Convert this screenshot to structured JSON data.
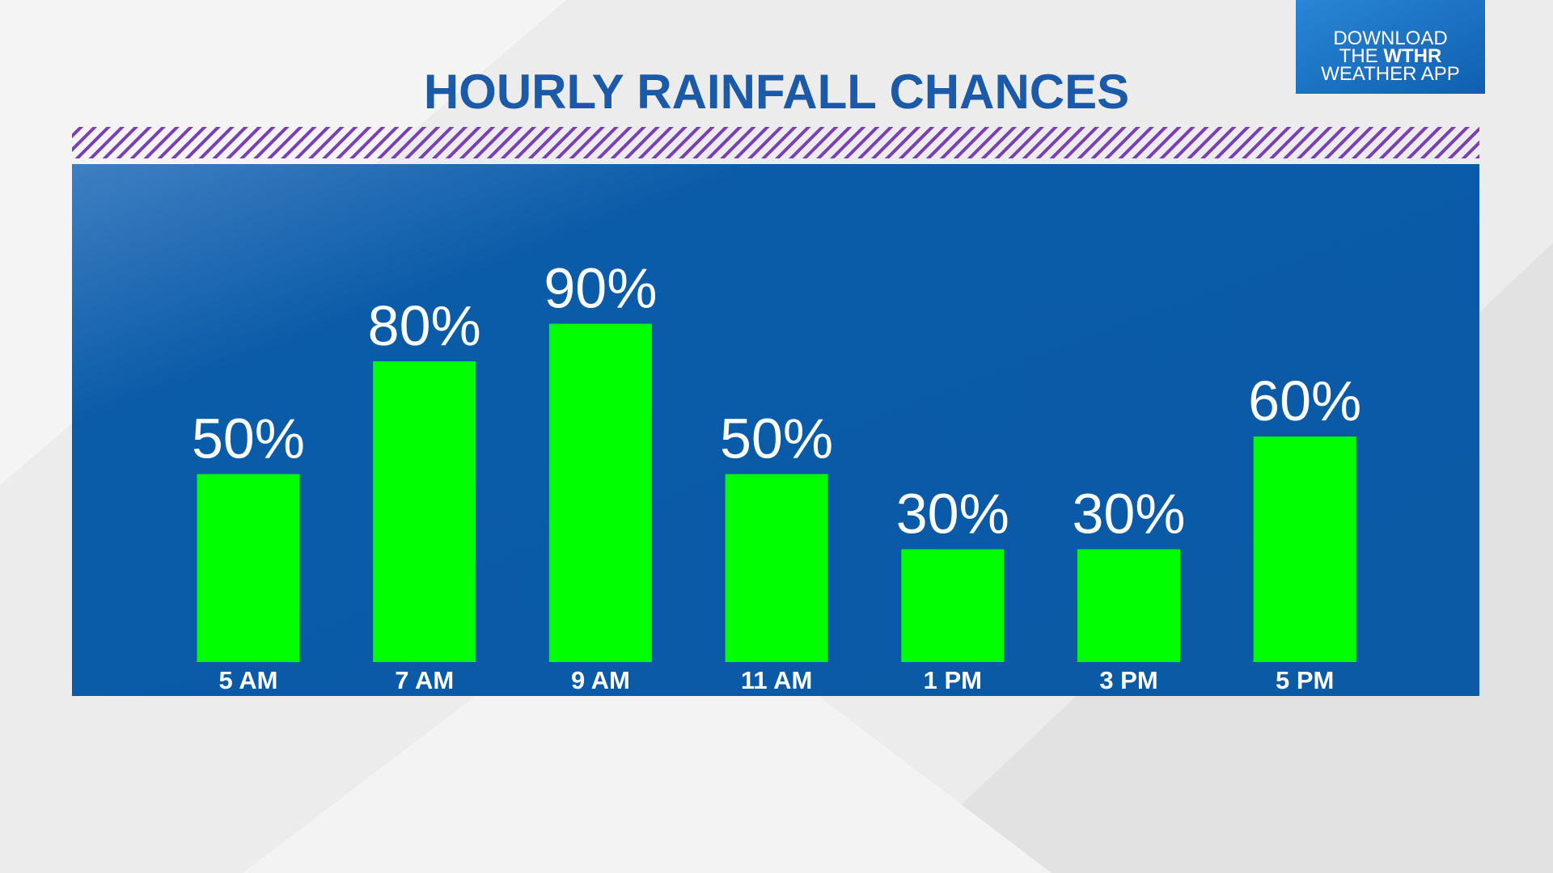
{
  "chart_data": {
    "type": "bar",
    "title": "HOURLY RAINFALL CHANCES",
    "categories": [
      "5 AM",
      "7 AM",
      "9 AM",
      "11 AM",
      "1 PM",
      "3 PM",
      "5 PM"
    ],
    "values": [
      50,
      80,
      90,
      50,
      30,
      30,
      60
    ],
    "value_labels": [
      "50%",
      "80%",
      "90%",
      "50%",
      "30%",
      "30%",
      "60%"
    ],
    "color": "#00ff00"
  },
  "badge": {
    "line1": "DOWNLOAD",
    "line2a": "THE",
    "line2b": "WTHR",
    "line3": "WEATHER APP"
  }
}
